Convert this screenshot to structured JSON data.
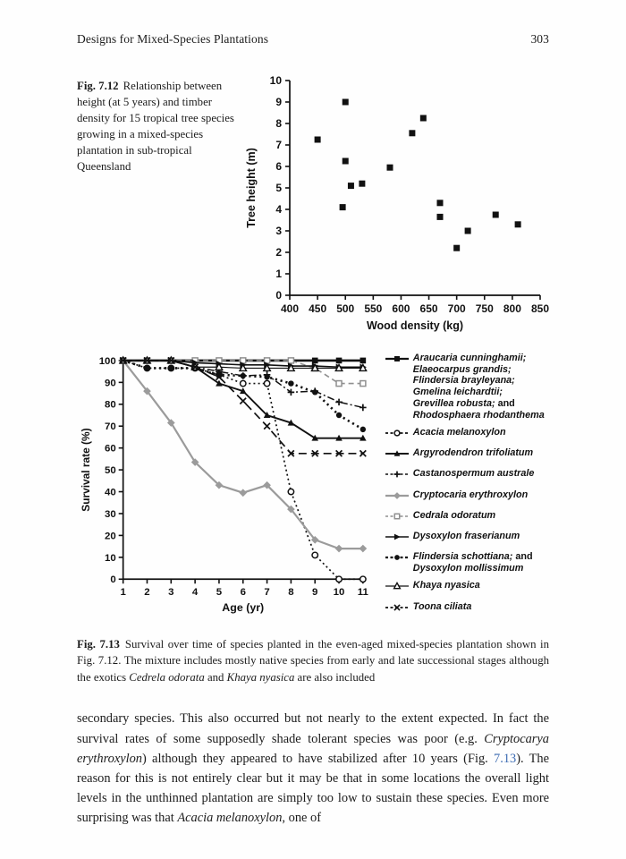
{
  "header": {
    "title": "Designs for Mixed-Species Plantations",
    "page_number": "303"
  },
  "fig712_caption": {
    "label": "Fig. 7.12",
    "text": "Relationship between height (at 5 years) and timber density for 15 tropical tree species growing in a mixed-species plantation in sub-tropical Queensland"
  },
  "chart_data": [
    {
      "type": "scatter",
      "title": "",
      "xlabel": "Wood density (kg)",
      "ylabel": "Tree height (m)",
      "xlim": [
        400,
        850
      ],
      "ylim": [
        0,
        10
      ],
      "xticks": [
        400,
        450,
        500,
        550,
        600,
        650,
        700,
        750,
        800,
        850
      ],
      "yticks": [
        0,
        1,
        2,
        3,
        4,
        5,
        6,
        7,
        8,
        9,
        10
      ],
      "marker": "filled-square",
      "points": [
        [
          450,
          7.25
        ],
        [
          500,
          9.0
        ],
        [
          500,
          6.25
        ],
        [
          495,
          4.1
        ],
        [
          510,
          5.1
        ],
        [
          530,
          5.2
        ],
        [
          580,
          5.95
        ],
        [
          620,
          7.55
        ],
        [
          640,
          8.25
        ],
        [
          670,
          4.3
        ],
        [
          670,
          3.65
        ],
        [
          700,
          2.2
        ],
        [
          720,
          3.0
        ],
        [
          770,
          3.75
        ],
        [
          810,
          3.3
        ]
      ]
    },
    {
      "type": "line",
      "title": "",
      "xlabel": "Age (yr)",
      "ylabel": "Survival rate (%)",
      "x": [
        1,
        2,
        3,
        4,
        5,
        6,
        7,
        8,
        9,
        10,
        11
      ],
      "xlim": [
        1,
        11
      ],
      "ylim": [
        0,
        100
      ],
      "yticks": [
        0,
        10,
        20,
        30,
        40,
        50,
        60,
        70,
        80,
        90,
        100
      ],
      "legend_position": "right",
      "series": [
        {
          "name": "Araucaria cunninghamii; Elaeocarpus grandis; Flindersia brayleyana; Gmelina leichardtii; Grevillea robusta; and Rhodosphaera rhodanthema",
          "marker": "filled-square",
          "line": "solid",
          "lw": 2.6,
          "color": "#111111",
          "values": [
            100,
            100,
            100,
            100,
            100,
            100,
            100,
            100,
            100,
            100,
            100
          ],
          "label_segments": [
            {
              "t": "Araucaria cunninghamii;",
              "italic": true,
              "br": true
            },
            {
              "t": "Elaeocarpus grandis;",
              "italic": true,
              "br": true
            },
            {
              "t": "Flindersia brayleyana;",
              "italic": true,
              "br": true
            },
            {
              "t": "Gmelina leichardtii;",
              "italic": true,
              "br": true
            },
            {
              "t": "Grevillea robusta;",
              "italic": true
            },
            {
              "t": " and",
              "italic": false,
              "br": true
            },
            {
              "t": "Rhodosphaera rhodanthema",
              "italic": true
            }
          ]
        },
        {
          "name": "Acacia melanoxylon",
          "marker": "open-circle",
          "line": "dotted",
          "lw": 1.7,
          "color": "#111111",
          "values": [
            100,
            96.5,
            96.5,
            96.5,
            93.5,
            89.5,
            89.5,
            40,
            11,
            0,
            0
          ],
          "label_segments": [
            {
              "t": "Acacia melanoxylon",
              "italic": true
            }
          ]
        },
        {
          "name": "Argyrodendron trifoliatum",
          "marker": "filled-triangle",
          "line": "solid",
          "lw": 1.9,
          "color": "#111111",
          "values": [
            100,
            100,
            100,
            97,
            89.5,
            86,
            75,
            71.5,
            64.5,
            64.5,
            64.5
          ],
          "label_segments": [
            {
              "t": "Argyrodendron trifoliatum",
              "italic": true
            }
          ]
        },
        {
          "name": "Castanospermum australe",
          "marker": "plus",
          "line": "dash-dot",
          "lw": 1.5,
          "color": "#111111",
          "values": [
            100,
            100,
            100,
            97,
            95,
            93,
            93.5,
            85.5,
            86,
            81,
            78.5
          ],
          "label_segments": [
            {
              "t": "Castanospermum australe",
              "italic": true
            }
          ]
        },
        {
          "name": "Cryptocaria erythroxylon",
          "marker": "filled-diamond",
          "line": "solid",
          "lw": 2.2,
          "color": "#9b9b9b",
          "values": [
            100,
            86,
            71.5,
            53.5,
            43,
            39.5,
            43,
            32,
            18,
            14,
            14
          ],
          "label_segments": [
            {
              "t": "Cryptocaria erythroxylon",
              "italic": true
            }
          ]
        },
        {
          "name": "Cedrala odoratum",
          "marker": "open-square",
          "line": "dashed",
          "lw": 1.6,
          "color": "#8f8f8f",
          "values": [
            100,
            100,
            100,
            100,
            100,
            100,
            100,
            100,
            96.5,
            89.5,
            89.5
          ],
          "label_segments": [
            {
              "t": "Cedrala odoratum",
              "italic": true
            }
          ]
        },
        {
          "name": "Dysoxylon fraserianum",
          "marker": "filled-tri-right",
          "line": "solid",
          "lw": 1.6,
          "color": "#111111",
          "values": [
            100,
            100,
            100,
            99,
            98.5,
            98,
            98,
            97.5,
            97.5,
            97,
            97
          ],
          "label_segments": [
            {
              "t": "Dysoxylon fraserianum",
              "italic": true
            }
          ]
        },
        {
          "name": "Flindersia schottiana; and Dysoxylon mollissimum",
          "marker": "filled-circle",
          "line": "dotted-bold",
          "lw": 2.6,
          "color": "#111111",
          "values": [
            100,
            96.5,
            96.5,
            96.5,
            93.5,
            93,
            92.5,
            89.5,
            85.5,
            75,
            68.5
          ],
          "label_segments": [
            {
              "t": "Flindersia schottiana;",
              "italic": true
            },
            {
              "t": " and",
              "italic": false,
              "br": true
            },
            {
              "t": "Dysoxylon mollissimum",
              "italic": true
            }
          ]
        },
        {
          "name": "Khaya nyasica",
          "marker": "open-triangle",
          "line": "solid",
          "lw": 1.2,
          "color": "#111111",
          "values": [
            100,
            100,
            100,
            97,
            97,
            96.5,
            96.5,
            96.5,
            96.5,
            96.5,
            96.5
          ],
          "label_segments": [
            {
              "t": "Khaya nyasica",
              "italic": true
            }
          ]
        },
        {
          "name": "Toona ciliata",
          "marker": "x",
          "line": "longdash",
          "lw": 1.7,
          "color": "#111111",
          "values": [
            100,
            100,
            100,
            97,
            92.5,
            81.5,
            70,
            57.5,
            57.5,
            57.5,
            57.5
          ],
          "label_segments": [
            {
              "t": "Toona ciliata",
              "italic": true
            }
          ]
        }
      ]
    }
  ],
  "fig713_caption": {
    "label": "Fig. 7.13",
    "segments": [
      {
        "t": "Survival over time of species planted in the even-aged mixed-species plantation shown in Fig. 7.12. The mixture includes mostly native species from early and late successional stages although the exotics "
      },
      {
        "t": "Cedrela odorata",
        "italic": true
      },
      {
        "t": " and "
      },
      {
        "t": "Khaya nyasica",
        "italic": true
      },
      {
        "t": " are also included"
      }
    ]
  },
  "body": {
    "segments": [
      {
        "t": "secondary species. This also occurred but not nearly to the extent expected. In fact the survival rates of some supposedly shade tolerant species was poor (e.g. "
      },
      {
        "t": "Cryptocarya erythroxylon",
        "italic": true
      },
      {
        "t": ") although they appeared to have stabilized after 10 years (Fig. "
      },
      {
        "t": "7.13",
        "link": true
      },
      {
        "t": "). The reason for this is not entirely clear but it may be that in some locations the overall light levels in the unthinned plantation are simply too low to sustain these species. Even more surprising was that "
      },
      {
        "t": "Acacia melanoxylon",
        "italic": true
      },
      {
        "t": ", one of"
      }
    ]
  }
}
